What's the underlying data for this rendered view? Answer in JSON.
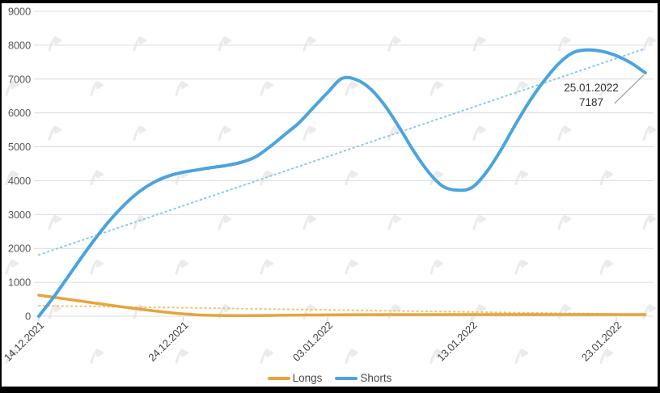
{
  "page": {
    "frame_color": "#000000",
    "background": "#ffffff"
  },
  "watermark": {
    "glyph": "forklog-logo",
    "color": "#ebebeb"
  },
  "chart_data": {
    "type": "line",
    "title": "",
    "xlabel": "",
    "ylabel": "",
    "ylim": [
      0,
      9000
    ],
    "ytick_step": 1000,
    "grid": "horizontal",
    "legend_position": "bottom",
    "x_tick_labels": [
      "14.12.2021",
      "24.12.2021",
      "03.01.2022",
      "13.01.2022",
      "23.01.2022"
    ],
    "x_tick_positions": [
      0,
      10,
      20,
      30,
      40
    ],
    "x_dates": [
      "14.12.2021",
      "15.12.2021",
      "16.12.2021",
      "17.12.2021",
      "18.12.2021",
      "19.12.2021",
      "20.12.2021",
      "21.12.2021",
      "22.12.2021",
      "23.12.2021",
      "24.12.2021",
      "25.12.2021",
      "26.12.2021",
      "27.12.2021",
      "28.12.2021",
      "29.12.2021",
      "30.12.2021",
      "31.12.2021",
      "01.01.2022",
      "02.01.2022",
      "03.01.2022",
      "04.01.2022",
      "05.01.2022",
      "06.01.2022",
      "07.01.2022",
      "08.01.2022",
      "09.01.2022",
      "10.01.2022",
      "11.01.2022",
      "12.01.2022",
      "13.01.2022",
      "14.01.2022",
      "15.01.2022",
      "16.01.2022",
      "17.01.2022",
      "18.01.2022",
      "19.01.2022",
      "20.01.2022",
      "21.01.2022",
      "22.01.2022",
      "23.01.2022",
      "24.01.2022",
      "25.01.2022"
    ],
    "series": [
      {
        "name": "Longs",
        "color": "#e8a33c",
        "line_width": 3.5,
        "values": [
          620,
          560,
          500,
          440,
          380,
          320,
          262,
          208,
          156,
          108,
          68,
          40,
          25,
          18,
          16,
          18,
          22,
          27,
          32,
          36,
          40,
          43,
          45,
          46,
          47,
          47,
          47,
          47,
          47,
          47,
          47,
          47,
          47,
          47,
          47,
          47,
          47,
          47,
          47,
          47,
          47,
          47,
          48
        ]
      },
      {
        "name": "Shorts",
        "color": "#4aa4df",
        "line_width": 4,
        "values": [
          0,
          550,
          1150,
          1760,
          2340,
          2870,
          3320,
          3690,
          3960,
          4140,
          4250,
          4320,
          4390,
          4450,
          4540,
          4700,
          5000,
          5350,
          5700,
          6150,
          6600,
          7020,
          6980,
          6700,
          6200,
          5550,
          4850,
          4250,
          3830,
          3720,
          3800,
          4250,
          4900,
          5650,
          6350,
          6950,
          7450,
          7780,
          7860,
          7820,
          7690,
          7480,
          7187
        ]
      }
    ],
    "trendlines": [
      {
        "series": "Longs",
        "style": "dotted",
        "color": "#f3c376",
        "start": 310,
        "end": 50
      },
      {
        "series": "Shorts",
        "style": "dotted",
        "color": "#8fc6ee",
        "start": 1810,
        "end": 7900
      }
    ],
    "annotation": {
      "date": "25.01.2022",
      "value": "7187",
      "series": "Shorts",
      "point_index": 42
    }
  }
}
